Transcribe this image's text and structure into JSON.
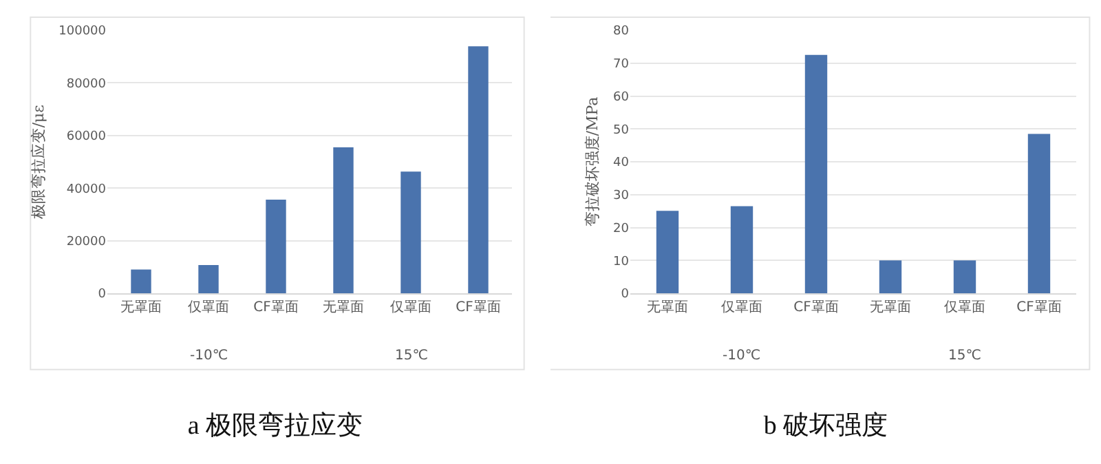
{
  "chart_data": [
    {
      "type": "bar",
      "title": "a 极限弯拉应变",
      "ylabel": "极限弯拉应变/με",
      "categories": [
        "无罩面",
        "仅罩面",
        "CF罩面",
        "无罩面",
        "仅罩面",
        "CF罩面"
      ],
      "values": [
        9000,
        10700,
        35600,
        55500,
        46300,
        93900
      ],
      "color": "#4a73ad",
      "ylim": [
        0,
        100000
      ],
      "yticks": [
        0,
        20000,
        40000,
        60000,
        80000,
        100000
      ],
      "grid": "y",
      "annotations": [
        "-10℃",
        "15℃"
      ]
    },
    {
      "type": "bar",
      "title": "b 破坏强度",
      "ylabel": "弯拉破坏强度/MPa",
      "categories": [
        "无罩面",
        "仅罩面",
        "CF罩面",
        "无罩面",
        "仅罩面",
        "CF罩面"
      ],
      "values": [
        25.1,
        26.5,
        72.5,
        10.0,
        10.0,
        48.5
      ],
      "color": "#4a73ad",
      "ylim": [
        0,
        80
      ],
      "yticks": [
        0,
        10,
        20,
        30,
        40,
        50,
        60,
        70,
        80
      ],
      "grid": "y",
      "annotations": [
        "-10℃",
        "15℃"
      ]
    }
  ]
}
